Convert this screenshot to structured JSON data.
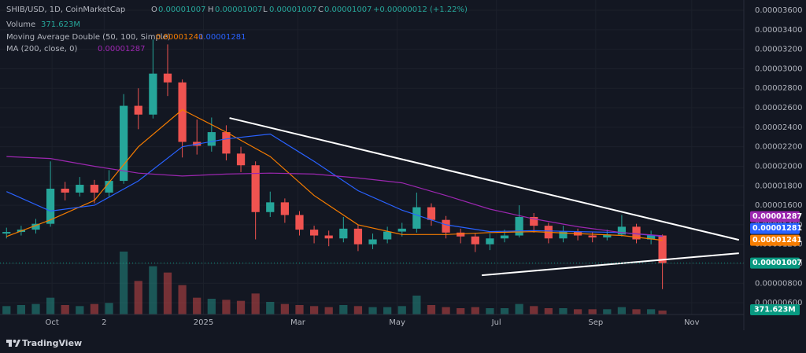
{
  "legend": {
    "symbol": "SHIB/USD, 1D, CoinMarketCap",
    "o_key": "O",
    "o": "0.00001007",
    "h_key": "H",
    "h": "0.00001007",
    "l_key": "L",
    "l": "0.00001007",
    "c_key": "C",
    "c": "0.00001007",
    "change": "+0.00000012 (+1.22%)",
    "volume_name": "Volume",
    "ma_double": "Moving Average Double (50, 100, Simple)",
    "ma200": "MA (200, close, 0)"
  },
  "footer": {
    "brand": "TradingView"
  },
  "chart_data": {
    "type": "candlestick",
    "x": [
      0,
      9,
      18,
      27,
      36,
      45,
      54,
      63,
      72,
      81,
      90,
      99,
      108,
      117,
      126,
      135,
      144,
      153,
      162,
      171,
      180,
      189,
      198,
      207,
      216,
      225,
      234,
      243,
      252,
      261,
      270,
      279,
      288,
      297,
      306,
      315,
      324,
      333,
      342,
      351,
      360,
      369,
      378,
      387,
      396,
      403
    ],
    "open": [
      1.31e-05,
      1.326e-05,
      1.35e-05,
      1.41e-05,
      1.77e-05,
      1.73e-05,
      1.81e-05,
      1.73e-05,
      1.85e-05,
      2.62e-05,
      2.53e-05,
      2.95e-05,
      2.86e-05,
      2.25e-05,
      2.21e-05,
      2.35e-05,
      2.13e-05,
      2.01e-05,
      1.53e-05,
      1.63e-05,
      1.5e-05,
      1.35e-05,
      1.29e-05,
      1.26e-05,
      1.36e-05,
      1.2e-05,
      1.25e-05,
      1.33e-05,
      1.36e-05,
      1.58e-05,
      1.45e-05,
      1.32e-05,
      1.28e-05,
      1.2e-05,
      1.26e-05,
      1.29e-05,
      1.48e-05,
      1.39e-05,
      1.26e-05,
      1.33e-05,
      1.29e-05,
      1.27e-05,
      1.3e-05,
      1.38e-05,
      1.25e-05,
      1.29e-05
    ],
    "high": [
      1.37e-05,
      1.39e-05,
      1.46e-05,
      2.05e-05,
      1.84e-05,
      1.89e-05,
      1.86e-05,
      1.96e-05,
      2.74e-05,
      2.8e-05,
      3.3e-05,
      3.25e-05,
      2.89e-05,
      2.48e-05,
      2.5e-05,
      2.42e-05,
      2.2e-05,
      2.05e-05,
      1.74e-05,
      1.67e-05,
      1.54e-05,
      1.39e-05,
      1.34e-05,
      1.48e-05,
      1.4e-05,
      1.31e-05,
      1.38e-05,
      1.42e-05,
      1.73e-05,
      1.62e-05,
      1.49e-05,
      1.36e-05,
      1.31e-05,
      1.31e-05,
      1.35e-05,
      1.6e-05,
      1.52e-05,
      1.42e-05,
      1.39e-05,
      1.36e-05,
      1.33e-05,
      1.35e-05,
      1.5e-05,
      1.41e-05,
      1.34e-05,
      1.3e-05
    ],
    "low": [
      1.26e-05,
      1.29e-05,
      1.31e-05,
      1.38e-05,
      1.65e-05,
      1.69e-05,
      1.62e-05,
      1.69e-05,
      1.82e-05,
      2.38e-05,
      2.49e-05,
      2.72e-05,
      2.09e-05,
      2.12e-05,
      2.15e-05,
      2.06e-05,
      1.94e-05,
      1.25e-05,
      1.48e-05,
      1.42e-05,
      1.29e-05,
      1.21e-05,
      1.18e-05,
      1.22e-05,
      1.13e-05,
      1.15e-05,
      1.21e-05,
      1.28e-05,
      1.32e-05,
      1.39e-05,
      1.26e-05,
      1.21e-05,
      1.12e-05,
      1.14e-05,
      1.22e-05,
      1.27e-05,
      1.32e-05,
      1.21e-05,
      1.22e-05,
      1.24e-05,
      1.22e-05,
      1.24e-05,
      1.28e-05,
      1.21e-05,
      1.2e-05,
      7.4e-06
    ],
    "close": [
      1.326e-05,
      1.35e-05,
      1.41e-05,
      1.77e-05,
      1.73e-05,
      1.81e-05,
      1.73e-05,
      1.85e-05,
      2.62e-05,
      2.53e-05,
      2.95e-05,
      2.86e-05,
      2.25e-05,
      2.21e-05,
      2.35e-05,
      2.13e-05,
      2.01e-05,
      1.53e-05,
      1.63e-05,
      1.5e-05,
      1.35e-05,
      1.29e-05,
      1.26e-05,
      1.36e-05,
      1.2e-05,
      1.25e-05,
      1.33e-05,
      1.36e-05,
      1.58e-05,
      1.45e-05,
      1.32e-05,
      1.28e-05,
      1.2e-05,
      1.26e-05,
      1.29e-05,
      1.48e-05,
      1.39e-05,
      1.26e-05,
      1.33e-05,
      1.29e-05,
      1.27e-05,
      1.3e-05,
      1.38e-05,
      1.25e-05,
      1.29e-05,
      1.007e-05
    ],
    "last_close_label": "0.00001007",
    "up_color": "#26a69a",
    "down_color": "#ef5350",
    "last_color": "#089981",
    "volume": {
      "values": [
        800000000.0,
        900000000.0,
        1000000000.0,
        1600000000.0,
        900000000.0,
        800000000.0,
        1000000000.0,
        1100000000.0,
        6000000000.0,
        3200000000.0,
        4600000000.0,
        4000000000.0,
        2800000000.0,
        1600000000.0,
        1500000000.0,
        1400000000.0,
        1300000000.0,
        2000000000.0,
        1200000000.0,
        1000000000.0,
        900000000.0,
        800000000.0,
        700000000.0,
        900000000.0,
        800000000.0,
        700000000.0,
        700000000.0,
        800000000.0,
        1800000000.0,
        900000000.0,
        700000000.0,
        600000000.0,
        700000000.0,
        600000000.0,
        600000000.0,
        1000000000.0,
        800000000.0,
        600000000.0,
        600000000.0,
        500000000.0,
        500000000.0,
        500000000.0,
        700000000.0,
        500000000.0,
        500000000.0,
        371623000
      ],
      "value_label": "371.623M"
    },
    "ma": {
      "x": [
        0,
        27,
        54,
        81,
        108,
        135,
        162,
        189,
        216,
        243,
        270,
        297,
        324,
        351,
        378,
        403
      ],
      "series": [
        {
          "color": "#f57c00",
          "values": [
            1.28e-05,
            1.45e-05,
            1.65e-05,
            2.2e-05,
            2.58e-05,
            2.35e-05,
            2.1e-05,
            1.7e-05,
            1.4e-05,
            1.3e-05,
            1.3e-05,
            1.32e-05,
            1.33e-05,
            1.31e-05,
            1.29e-05,
            1.241e-05
          ],
          "last_label": "0.00001241"
        },
        {
          "color": "#2962ff",
          "values": [
            1.74e-05,
            1.54e-05,
            1.6e-05,
            1.85e-05,
            2.2e-05,
            2.28e-05,
            2.33e-05,
            2.05e-05,
            1.75e-05,
            1.55e-05,
            1.4e-05,
            1.33e-05,
            1.34e-05,
            1.33e-05,
            1.32e-05,
            1.281e-05
          ],
          "last_label": "0.00001281"
        },
        {
          "color": "#9c27b0",
          "values": [
            2.1e-05,
            2.08e-05,
            2e-05,
            1.93e-05,
            1.9e-05,
            1.92e-05,
            1.93e-05,
            1.92e-05,
            1.88e-05,
            1.83e-05,
            1.7e-05,
            1.56e-05,
            1.46e-05,
            1.38e-05,
            1.32e-05,
            1.287e-05
          ],
          "last_label": "0.00001287"
        }
      ]
    },
    "trendlines": [
      {
        "x": [
          137,
          450
        ],
        "values": [
          2.495e-05,
          1.245e-05
        ]
      },
      {
        "x": [
          292,
          450
        ],
        "values": [
          8.82e-06,
          1.108e-05
        ]
      }
    ],
    "trend_color": "#ffffff",
    "xlim": [
      -4,
      453
    ],
    "xticks": [
      {
        "value": 28,
        "label": "Oct"
      },
      {
        "value": 60,
        "label": "2"
      },
      {
        "value": 121,
        "label": "2025"
      },
      {
        "value": 179,
        "label": "Mar"
      },
      {
        "value": 240,
        "label": "May"
      },
      {
        "value": 301,
        "label": "Jul"
      },
      {
        "value": 362,
        "label": "Sep"
      },
      {
        "value": 421,
        "label": "Nov"
      }
    ],
    "ylim": [
      4.8e-06,
      3.705e-05
    ],
    "yticks": [
      {
        "value": 6e-06,
        "label": "0.00000600"
      },
      {
        "value": 8e-06,
        "label": "0.00000800"
      },
      {
        "value": 1e-05,
        "label": "0.00001000"
      },
      {
        "value": 1.2e-05,
        "label": "0.00001200"
      },
      {
        "value": 1.4e-05,
        "label": "0.00001400"
      },
      {
        "value": 1.6e-05,
        "label": "0.00001600"
      },
      {
        "value": 1.8e-05,
        "label": "0.00001800"
      },
      {
        "value": 2e-05,
        "label": "0.00002000"
      },
      {
        "value": 2.2e-05,
        "label": "0.00002200"
      },
      {
        "value": 2.4e-05,
        "label": "0.00002400"
      },
      {
        "value": 2.6e-05,
        "label": "0.00002600"
      },
      {
        "value": 2.8e-05,
        "label": "0.00002800"
      },
      {
        "value": 3e-05,
        "label": "0.00003000"
      },
      {
        "value": 3.2e-05,
        "label": "0.00003200"
      },
      {
        "value": 3.4e-05,
        "label": "0.00003400"
      },
      {
        "value": 3.6e-05,
        "label": "0.00003600"
      }
    ],
    "grid": true
  }
}
